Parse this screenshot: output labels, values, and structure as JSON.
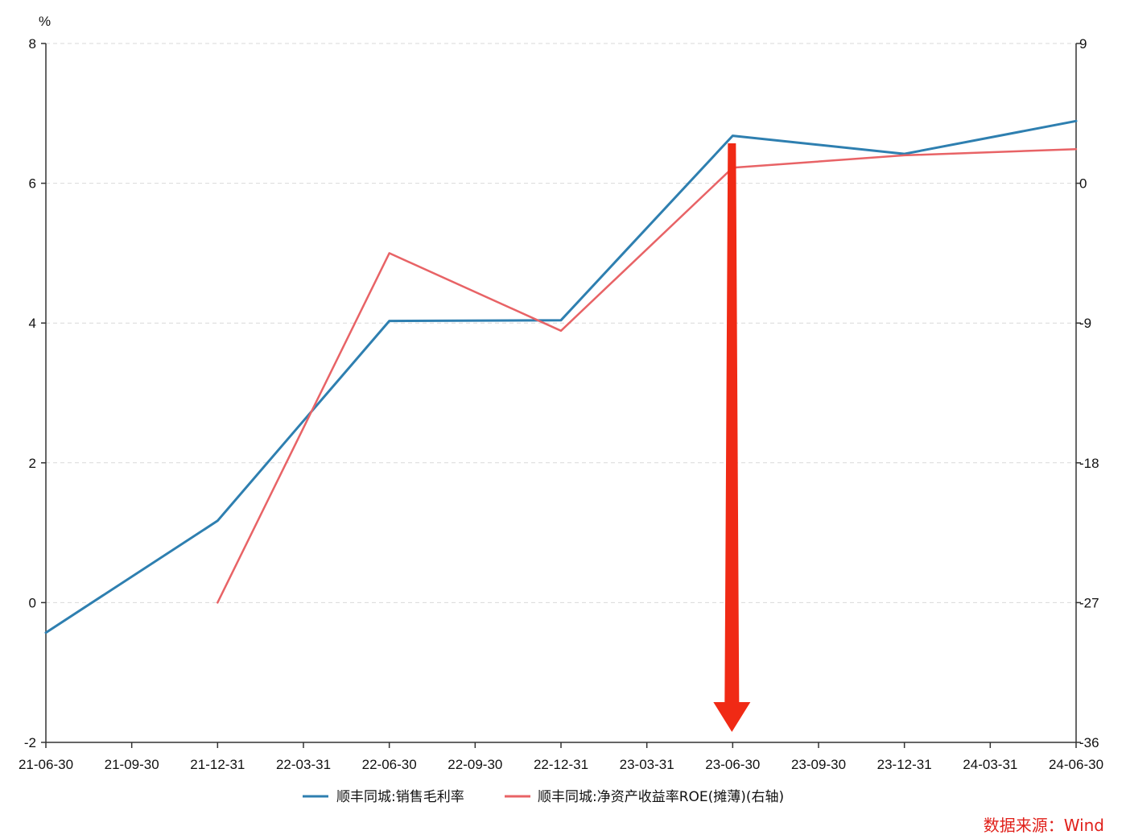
{
  "chart_data": {
    "type": "line",
    "unit_label": "%",
    "categories": [
      "21-06-30",
      "21-09-30",
      "21-12-31",
      "22-03-31",
      "22-06-30",
      "22-09-30",
      "22-12-31",
      "23-03-31",
      "23-06-30",
      "23-09-30",
      "23-12-31",
      "24-03-31",
      "24-06-30"
    ],
    "y_left": {
      "ticks": [
        "8",
        "6",
        "4",
        "2",
        "0",
        "-2"
      ],
      "min": -2,
      "max": 8
    },
    "y_right": {
      "ticks": [
        "9",
        "0",
        "-9",
        "-18",
        "-27",
        "-36"
      ],
      "min": -36,
      "max": 9
    },
    "grid": true,
    "legend_position": "bottom",
    "series": [
      {
        "name": "顺丰同城:销售毛利率",
        "axis": "left",
        "color": "#2e7fb0",
        "x": [
          "21-06-30",
          "21-12-31",
          "22-06-30",
          "22-12-31",
          "23-06-30",
          "23-12-31",
          "24-06-30"
        ],
        "values": [
          -0.43,
          1.17,
          4.03,
          4.04,
          6.68,
          6.42,
          6.89
        ]
      },
      {
        "name": "顺丰同城:净资产收益率ROE(摊薄)(右轴)",
        "axis": "right",
        "color": "#e86366",
        "x": [
          "21-12-31",
          "22-06-30",
          "22-12-31",
          "23-06-30",
          "23-12-31",
          "24-06-30"
        ],
        "values": [
          -27.0,
          -4.5,
          -9.5,
          1.0,
          1.8,
          2.2
        ]
      }
    ],
    "annotation": {
      "type": "arrow",
      "x": "23-06-30",
      "color": "#f02a15"
    }
  },
  "source_note": "数据来源：Wind"
}
